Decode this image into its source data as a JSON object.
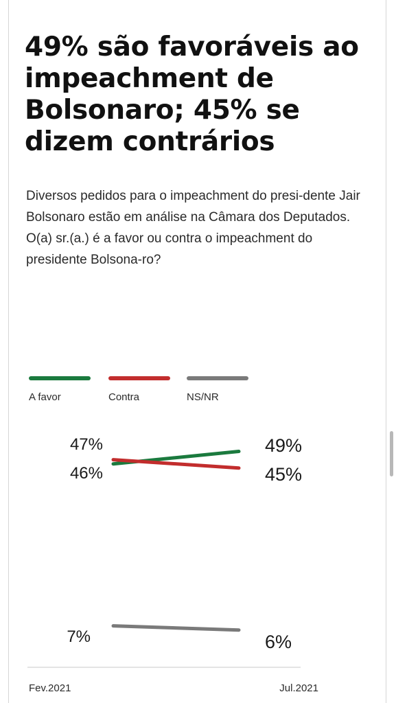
{
  "title": "49% são favoráveis ao impeachment de Bolsonaro; 45% se dizem contrários",
  "question": "Diversos pedidos para o impeachment do presi-dente Jair Bolsonaro estão em análise na Câmara dos Deputados. O(a) sr.(a.) é a favor ou contra o impeachment do presidente Bolsona-ro?",
  "legend": [
    {
      "label": "A favor",
      "color": "#1b7a3e"
    },
    {
      "label": "Contra",
      "color": "#c22d2d"
    },
    {
      "label": "NS/NR",
      "color": "#7a7a7a"
    }
  ],
  "chart_data": {
    "type": "line",
    "x": [
      "Fev.2021",
      "Jul.2021"
    ],
    "series": [
      {
        "name": "A favor",
        "values": [
          46,
          49
        ],
        "color": "#1b7a3e",
        "labels": [
          "46%",
          "49%"
        ]
      },
      {
        "name": "Contra",
        "values": [
          47,
          45
        ],
        "color": "#c22d2d",
        "labels": [
          "47%",
          "45%"
        ]
      },
      {
        "name": "NS/NR",
        "values": [
          7,
          6
        ],
        "color": "#7a7a7a",
        "labels": [
          "7%",
          "6%"
        ]
      }
    ],
    "title": "",
    "xlabel": "",
    "ylabel": "",
    "grid": false
  }
}
